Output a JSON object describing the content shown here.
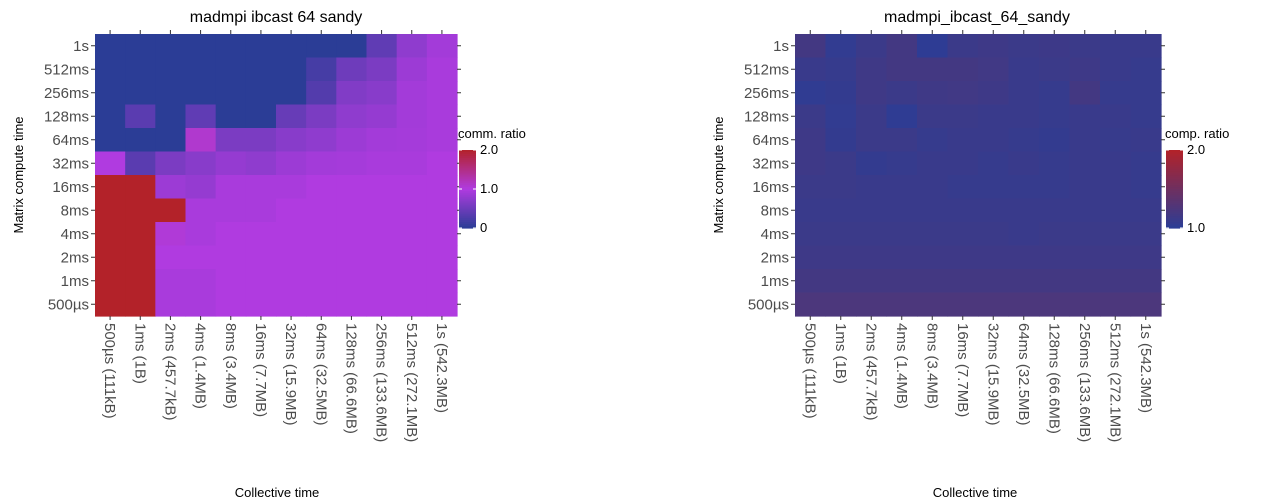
{
  "chart_data": [
    {
      "type": "heatmap",
      "title": "madmpi ibcast 64 sandy",
      "xlabel": "Collective time",
      "ylabel": "Matrix compute time",
      "x": [
        "500µs (111kB)",
        "1ms (1B)",
        "2ms (457.7kB)",
        "4ms (1.4MB)",
        "8ms (3.4MB)",
        "16ms (7.7MB)",
        "32ms (15.9MB)",
        "64ms (32.5MB)",
        "128ms (66.6MB)",
        "256ms (133.6MB)",
        "512ms (272.1MB)",
        "1s (542.3MB)"
      ],
      "y": [
        "1s",
        "512ms",
        "256ms",
        "128ms",
        "64ms",
        "32ms",
        "16ms",
        "8ms",
        "4ms",
        "2ms",
        "1ms",
        "500µs"
      ],
      "legend": {
        "title": "comm. ratio",
        "ticks": [
          "2.0",
          "1.0",
          "0"
        ],
        "range": [
          0,
          2
        ],
        "midpoint": 1,
        "colors": {
          "low": "#2b3d96",
          "mid": "#b03be0",
          "high": "#b32229"
        }
      },
      "values": [
        [
          0,
          0,
          0,
          0,
          0,
          0,
          0,
          0,
          0,
          0.4,
          0.75,
          0.9
        ],
        [
          0,
          0,
          0,
          0,
          0,
          0,
          0,
          0.2,
          0.5,
          0.6,
          0.85,
          0.95
        ],
        [
          0,
          0,
          0,
          0,
          0,
          0,
          0,
          0.3,
          0.65,
          0.7,
          0.9,
          0.95
        ],
        [
          0,
          0.35,
          0,
          0.4,
          0,
          0,
          0.45,
          0.6,
          0.75,
          0.8,
          0.9,
          0.95
        ],
        [
          0,
          0,
          0,
          1.1,
          0.6,
          0.6,
          0.7,
          0.75,
          0.85,
          0.9,
          0.92,
          0.95
        ],
        [
          1.0,
          0.35,
          0.6,
          0.7,
          0.8,
          0.75,
          0.85,
          0.9,
          0.92,
          0.95,
          0.95,
          1.0
        ],
        [
          2.0,
          2.0,
          0.85,
          0.8,
          0.95,
          0.95,
          0.95,
          1.0,
          1.0,
          1.0,
          1.0,
          1.0
        ],
        [
          2.0,
          2.0,
          2.0,
          0.95,
          0.95,
          0.95,
          1.0,
          1.0,
          1.0,
          1.0,
          1.0,
          1.0
        ],
        [
          2.0,
          2.0,
          1.05,
          0.95,
          1.0,
          1.0,
          1.0,
          1.0,
          1.0,
          1.0,
          1.0,
          1.0
        ],
        [
          2.0,
          2.0,
          1.0,
          1.0,
          1.0,
          1.0,
          1.0,
          1.0,
          1.0,
          1.0,
          1.0,
          1.0
        ],
        [
          2.0,
          2.0,
          0.95,
          0.95,
          1.0,
          1.0,
          1.0,
          1.0,
          1.0,
          1.0,
          1.0,
          1.0
        ],
        [
          2.0,
          2.0,
          0.95,
          0.95,
          1.0,
          1.0,
          1.0,
          1.0,
          1.0,
          1.0,
          1.0,
          1.0
        ]
      ]
    },
    {
      "type": "heatmap",
      "title": "madmpi_ibcast_64_sandy",
      "xlabel": "Collective time",
      "ylabel": "Matrix compute time",
      "x": [
        "500µs (111kB)",
        "1ms (1B)",
        "2ms (457.7kB)",
        "4ms (1.4MB)",
        "8ms (3.4MB)",
        "16ms (7.7MB)",
        "32ms (15.9MB)",
        "64ms (32.5MB)",
        "128ms (66.6MB)",
        "256ms (133.6MB)",
        "512ms (272.1MB)",
        "1s (542.3MB)"
      ],
      "y": [
        "1s",
        "512ms",
        "256ms",
        "128ms",
        "64ms",
        "32ms",
        "16ms",
        "8ms",
        "4ms",
        "2ms",
        "1ms",
        "500µs"
      ],
      "legend": {
        "title": "comp. ratio",
        "ticks": [
          "2.0",
          "1.0"
        ],
        "range": [
          1.0,
          2.0
        ],
        "colors": {
          "low": "#2b3d96",
          "high": "#b32229"
        }
      },
      "values": [
        [
          1.18,
          1.05,
          1.12,
          1.18,
          1.02,
          1.12,
          1.14,
          1.12,
          1.13,
          1.12,
          1.1,
          1.1
        ],
        [
          1.1,
          1.08,
          1.15,
          1.18,
          1.18,
          1.18,
          1.16,
          1.1,
          1.12,
          1.14,
          1.1,
          1.08
        ],
        [
          1.04,
          1.06,
          1.15,
          1.12,
          1.15,
          1.16,
          1.14,
          1.1,
          1.08,
          1.18,
          1.08,
          1.08
        ],
        [
          1.12,
          1.05,
          1.12,
          1.03,
          1.12,
          1.12,
          1.1,
          1.1,
          1.08,
          1.1,
          1.1,
          1.08
        ],
        [
          1.14,
          1.06,
          1.12,
          1.12,
          1.08,
          1.1,
          1.1,
          1.08,
          1.06,
          1.1,
          1.09,
          1.1
        ],
        [
          1.14,
          1.12,
          1.06,
          1.08,
          1.1,
          1.1,
          1.08,
          1.1,
          1.08,
          1.1,
          1.1,
          1.08
        ],
        [
          1.12,
          1.12,
          1.1,
          1.1,
          1.1,
          1.08,
          1.08,
          1.08,
          1.08,
          1.1,
          1.1,
          1.08
        ],
        [
          1.1,
          1.1,
          1.1,
          1.1,
          1.1,
          1.1,
          1.1,
          1.1,
          1.1,
          1.1,
          1.1,
          1.1
        ],
        [
          1.12,
          1.12,
          1.12,
          1.12,
          1.12,
          1.12,
          1.12,
          1.1,
          1.12,
          1.12,
          1.12,
          1.12
        ],
        [
          1.14,
          1.14,
          1.14,
          1.14,
          1.14,
          1.14,
          1.14,
          1.14,
          1.14,
          1.14,
          1.14,
          1.14
        ],
        [
          1.18,
          1.18,
          1.18,
          1.18,
          1.18,
          1.18,
          1.18,
          1.18,
          1.18,
          1.18,
          1.18,
          1.18
        ],
        [
          1.24,
          1.24,
          1.24,
          1.24,
          1.24,
          1.24,
          1.24,
          1.24,
          1.24,
          1.24,
          1.24,
          1.24
        ]
      ]
    }
  ]
}
